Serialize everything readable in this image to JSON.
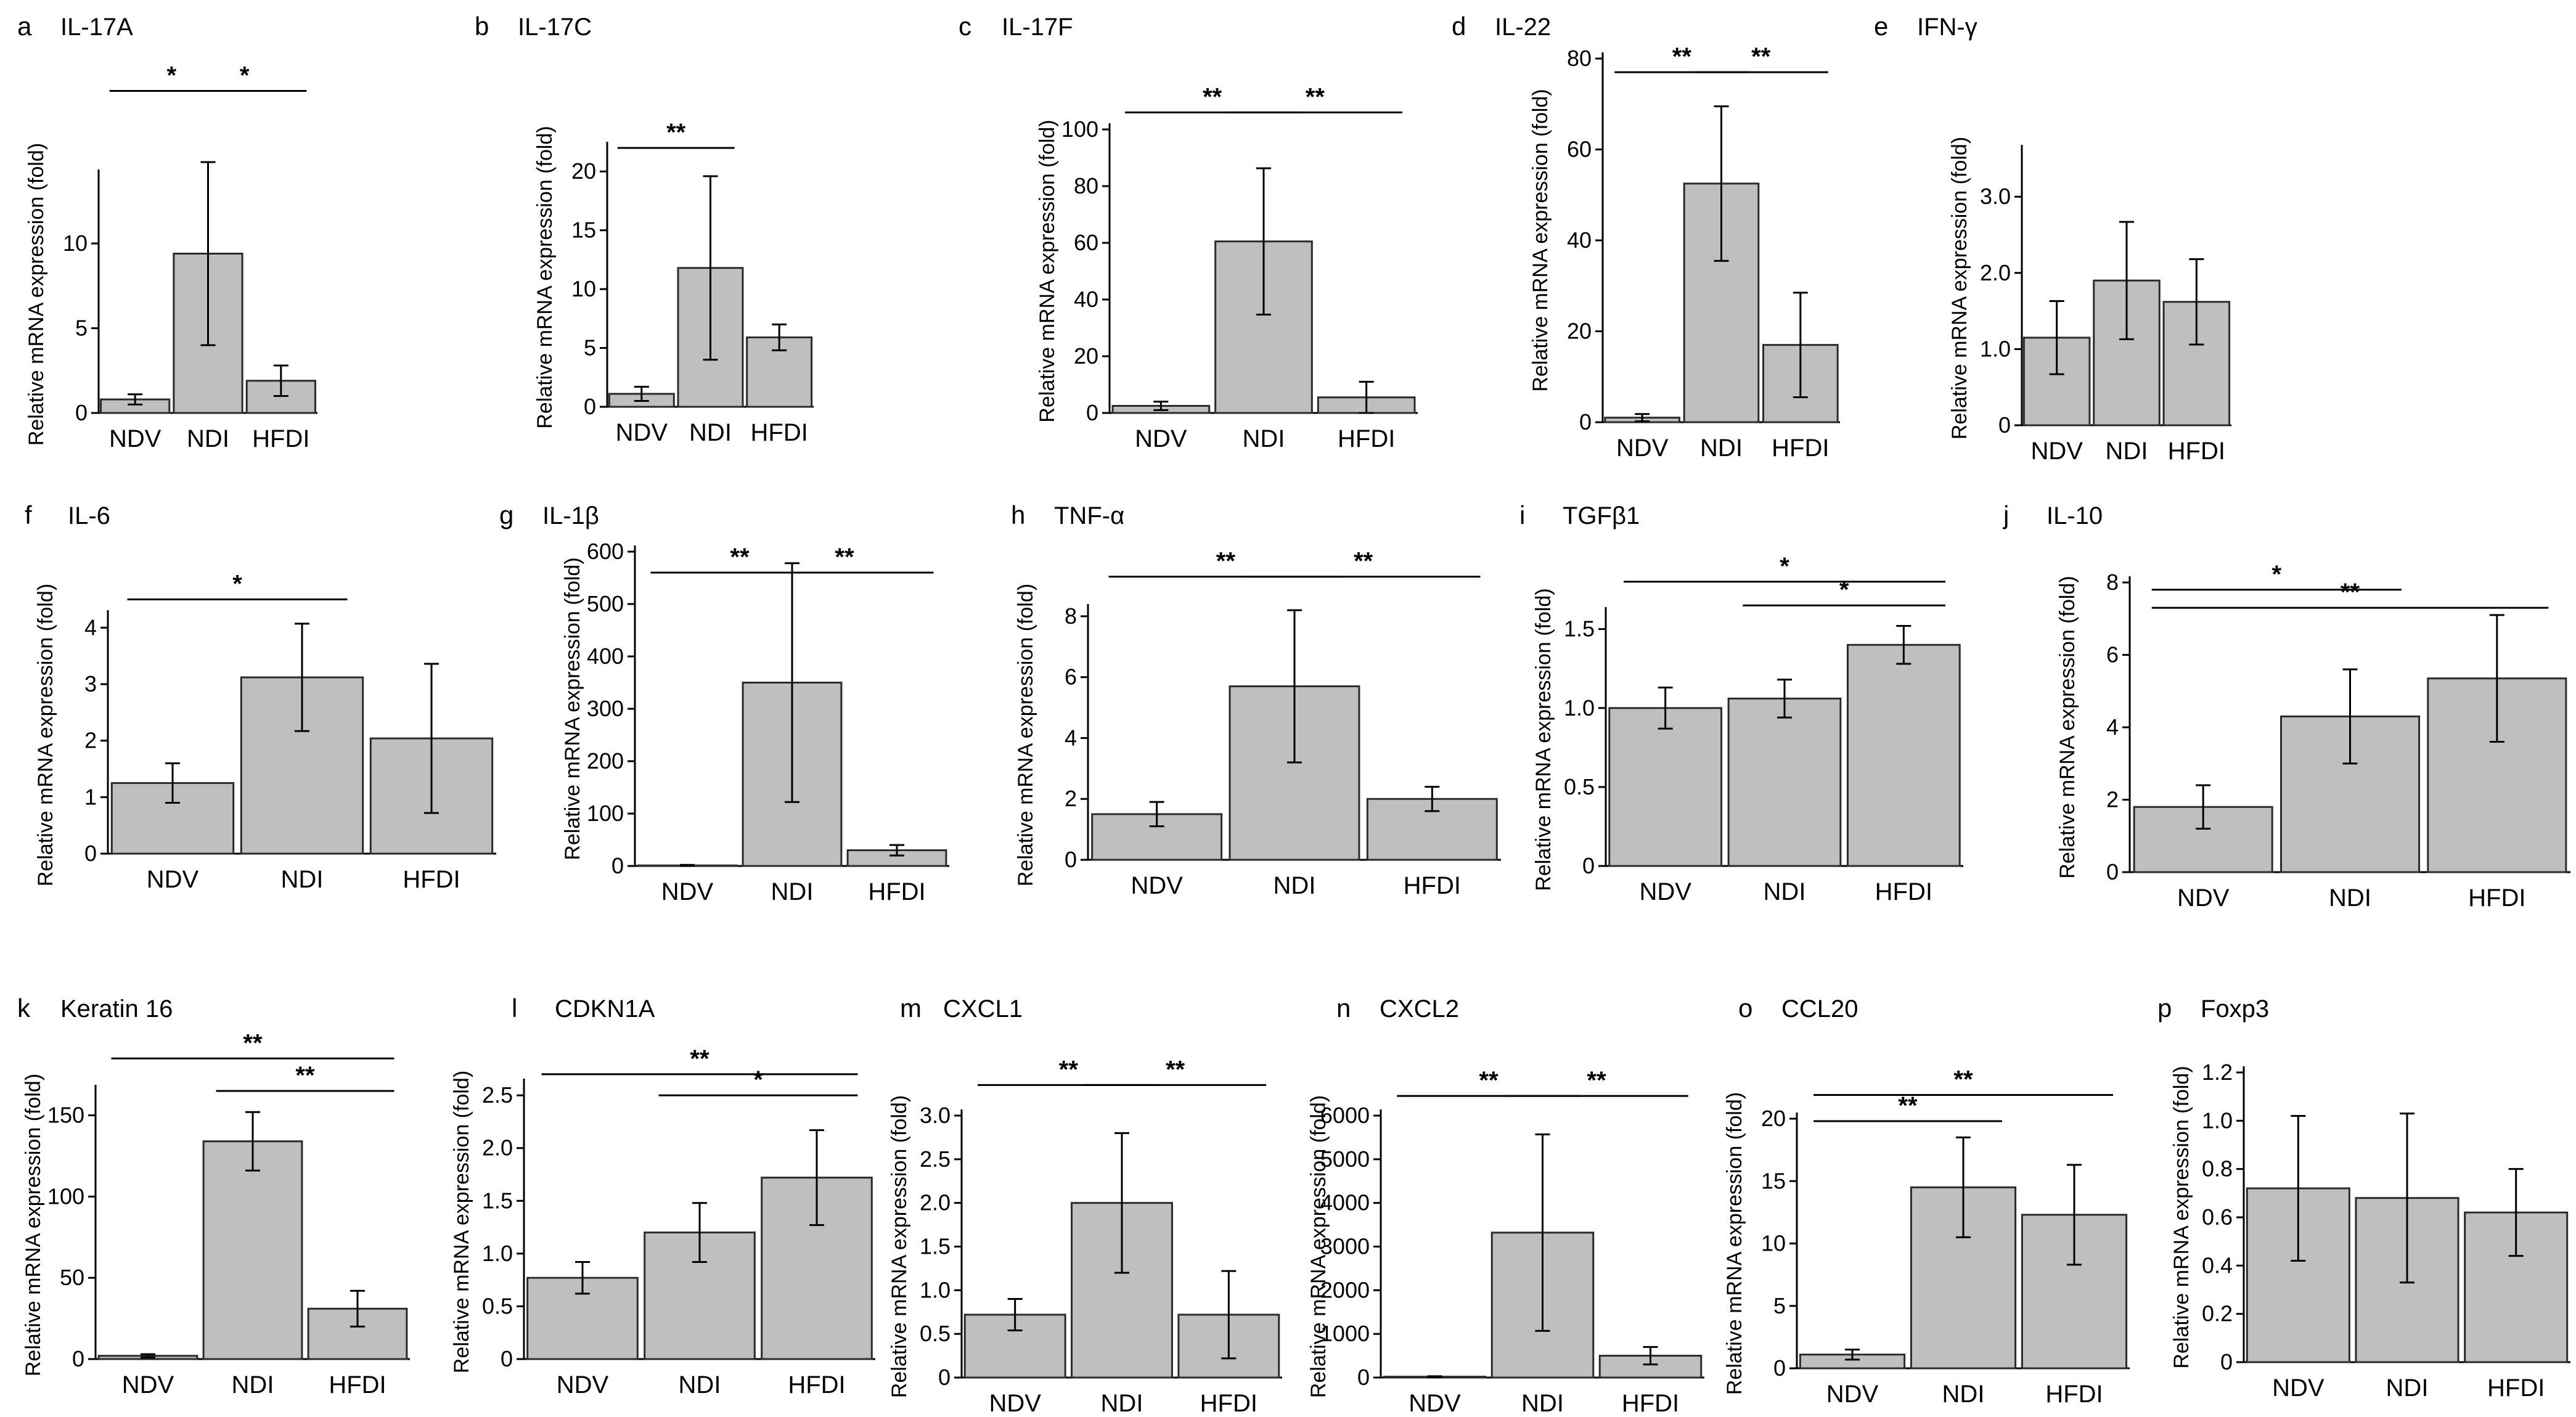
{
  "figure": {
    "ylabel": "Relative mRNA expression (fold)",
    "bar_color": "#bfbfbf",
    "bar_stroke": "#2b2b2b"
  },
  "chart_data": [
    {
      "panel": "a",
      "title": "IL-17A",
      "type": "bar",
      "categories": [
        "NDV",
        "NDI",
        "HFDI"
      ],
      "values": [
        0.8,
        9.4,
        1.9
      ],
      "errors": [
        0.3,
        5.4,
        0.9
      ],
      "yticks": [
        0,
        5,
        10
      ],
      "ylim": [
        0,
        14
      ],
      "significance": [
        {
          "from": 0,
          "to": 1,
          "label": "*",
          "level": 19.0
        },
        {
          "from": 1,
          "to": 2,
          "label": "*",
          "level": 19.0
        }
      ]
    },
    {
      "panel": "b",
      "title": "IL-17C",
      "type": "bar",
      "categories": [
        "NDV",
        "NDI",
        "HFDI"
      ],
      "values": [
        1.1,
        11.8,
        5.9
      ],
      "errors": [
        0.6,
        7.8,
        1.1
      ],
      "yticks": [
        0,
        5,
        10,
        15,
        20
      ],
      "ylim": [
        0,
        22
      ],
      "significance": [
        {
          "from": 0,
          "to": 1,
          "label": "**",
          "level": 22.0
        }
      ]
    },
    {
      "panel": "c",
      "title": "IL-17F",
      "type": "bar",
      "categories": [
        "NDV",
        "NDI",
        "HFDI"
      ],
      "values": [
        2.5,
        60.5,
        5.5
      ],
      "errors": [
        1.5,
        25.8,
        5.5
      ],
      "yticks": [
        0,
        20,
        40,
        60,
        80,
        100
      ],
      "ylim": [
        0,
        100
      ],
      "significance": [
        {
          "from": 0,
          "to": 1,
          "label": "**",
          "level": 106
        },
        {
          "from": 1,
          "to": 2,
          "label": "**",
          "level": 106
        }
      ]
    },
    {
      "panel": "d",
      "title": "IL-22",
      "type": "bar",
      "categories": [
        "NDV",
        "NDI",
        "HFDI"
      ],
      "values": [
        1.0,
        52.5,
        17.0
      ],
      "errors": [
        0.8,
        17.0,
        11.5
      ],
      "yticks": [
        0,
        20,
        40,
        60,
        80
      ],
      "ylim": [
        0,
        80
      ],
      "significance": [
        {
          "from": 0,
          "to": 1,
          "label": "**",
          "level": 77
        },
        {
          "from": 1,
          "to": 2,
          "label": "**",
          "level": 77
        }
      ]
    },
    {
      "panel": "e",
      "title": "IFN-γ",
      "type": "bar",
      "categories": [
        "NDV",
        "NDI",
        "HFDI"
      ],
      "values": [
        1.15,
        1.9,
        1.62
      ],
      "errors": [
        0.48,
        0.77,
        0.56
      ],
      "yticks": [
        0,
        1.0,
        2.0,
        3.0
      ],
      "ytick_labels": [
        "0",
        "1.0",
        "2.0",
        "3.0"
      ],
      "ylim": [
        0,
        3.6
      ],
      "significance": []
    },
    {
      "panel": "f",
      "title": "IL-6",
      "type": "bar",
      "categories": [
        "NDV",
        "NDI",
        "HFDI"
      ],
      "values": [
        1.25,
        3.12,
        2.04
      ],
      "errors": [
        0.35,
        0.95,
        1.32
      ],
      "yticks": [
        0,
        1,
        2,
        3,
        4
      ],
      "ylim": [
        0,
        4.2
      ],
      "significance": [
        {
          "from": 0,
          "to": 1,
          "label": "*",
          "level": 4.5
        }
      ]
    },
    {
      "panel": "g",
      "title": "IL-1β",
      "type": "bar",
      "categories": [
        "NDV",
        "NDI",
        "HFDI"
      ],
      "values": [
        1,
        350,
        30
      ],
      "errors": [
        1,
        228,
        10
      ],
      "yticks": [
        0,
        100,
        200,
        300,
        400,
        500,
        600
      ],
      "ylim": [
        0,
        600
      ],
      "significance": [
        {
          "from": 0,
          "to": 1,
          "label": "**",
          "level": 560
        },
        {
          "from": 1,
          "to": 2,
          "label": "**",
          "level": 560
        }
      ]
    },
    {
      "panel": "h",
      "title": "TNF-α",
      "type": "bar",
      "categories": [
        "NDV",
        "NDI",
        "HFDI"
      ],
      "values": [
        1.5,
        5.7,
        2.0
      ],
      "errors": [
        0.4,
        2.5,
        0.4
      ],
      "yticks": [
        0,
        2,
        4,
        6,
        8
      ],
      "ylim": [
        0,
        8.2
      ],
      "significance": [
        {
          "from": 0,
          "to": 1,
          "label": "**",
          "level": 9.3
        },
        {
          "from": 1,
          "to": 2,
          "label": "**",
          "level": 9.3
        }
      ]
    },
    {
      "panel": "i",
      "title": "TGFβ1",
      "type": "bar",
      "categories": [
        "NDV",
        "NDI",
        "HFDI"
      ],
      "values": [
        1.0,
        1.06,
        1.4
      ],
      "errors": [
        0.13,
        0.12,
        0.12
      ],
      "yticks": [
        0,
        0.5,
        1.0,
        1.5
      ],
      "ytick_labels": [
        "0",
        "0.5",
        "1.0",
        "1.5"
      ],
      "ylim": [
        0,
        1.6
      ],
      "significance": [
        {
          "from": 0,
          "to": 2,
          "label": "*",
          "level": 1.8
        },
        {
          "from": 1,
          "to": 2,
          "label": "*",
          "level": 1.65
        }
      ]
    },
    {
      "panel": "j",
      "title": "IL-10",
      "type": "bar",
      "categories": [
        "NDV",
        "NDI",
        "HFDI"
      ],
      "values": [
        1.8,
        4.3,
        5.35
      ],
      "errors": [
        0.6,
        1.3,
        1.75
      ],
      "yticks": [
        0,
        2,
        4,
        6,
        8
      ],
      "ylim": [
        0,
        8
      ],
      "significance": [
        {
          "from": 0,
          "to": 1,
          "label": "*",
          "level": 7.8
        },
        {
          "from": 0,
          "to": 2,
          "label": "**",
          "level": 7.3
        }
      ]
    },
    {
      "panel": "k",
      "title": "Keratin 16",
      "type": "bar",
      "categories": [
        "NDV",
        "NDI",
        "HFDI"
      ],
      "values": [
        2,
        134,
        31
      ],
      "errors": [
        1,
        18,
        11
      ],
      "yticks": [
        0,
        50,
        100,
        150
      ],
      "ylim": [
        0,
        165
      ],
      "significance": [
        {
          "from": 0,
          "to": 2,
          "label": "**",
          "level": 185
        },
        {
          "from": 1,
          "to": 2,
          "label": "**",
          "level": 165
        }
      ]
    },
    {
      "panel": "l",
      "title": "CDKN1A",
      "type": "bar",
      "categories": [
        "NDV",
        "NDI",
        "HFDI"
      ],
      "values": [
        0.77,
        1.2,
        1.72
      ],
      "errors": [
        0.15,
        0.28,
        0.45
      ],
      "yticks": [
        0,
        0.5,
        1.0,
        1.5,
        2.0,
        2.5
      ],
      "ytick_labels": [
        "0",
        "0.5",
        "1.0",
        "1.5",
        "2.0",
        "2.5"
      ],
      "ylim": [
        0,
        2.6
      ],
      "significance": [
        {
          "from": 0,
          "to": 2,
          "label": "**",
          "level": 2.7
        },
        {
          "from": 1,
          "to": 2,
          "label": "*",
          "level": 2.5
        }
      ]
    },
    {
      "panel": "m",
      "title": "CXCL1",
      "type": "bar",
      "categories": [
        "NDV",
        "NDI",
        "HFDI"
      ],
      "values": [
        0.72,
        2.0,
        0.72
      ],
      "errors": [
        0.18,
        0.8,
        0.5
      ],
      "yticks": [
        0,
        0.5,
        1.0,
        1.5,
        2.0,
        2.5,
        3.0
      ],
      "ytick_labels": [
        "0",
        "0.5",
        "1.0",
        "1.5",
        "2.0",
        "2.5",
        "3.0"
      ],
      "ylim": [
        0,
        3.0
      ],
      "significance": [
        {
          "from": 0,
          "to": 1,
          "label": "**",
          "level": 3.35
        },
        {
          "from": 1,
          "to": 2,
          "label": "**",
          "level": 3.35
        }
      ]
    },
    {
      "panel": "n",
      "title": "CXCL2",
      "type": "bar",
      "categories": [
        "NDV",
        "NDI",
        "HFDI"
      ],
      "values": [
        20,
        3320,
        500
      ],
      "errors": [
        10,
        2250,
        200
      ],
      "yticks": [
        0,
        1000,
        2000,
        3000,
        4000,
        5000,
        6000
      ],
      "ylim": [
        0,
        6000
      ],
      "significance": [
        {
          "from": 0,
          "to": 1,
          "label": "**",
          "level": 6450
        },
        {
          "from": 1,
          "to": 2,
          "label": "**",
          "level": 6450
        }
      ]
    },
    {
      "panel": "o",
      "title": "CCL20",
      "type": "bar",
      "categories": [
        "NDV",
        "NDI",
        "HFDI"
      ],
      "values": [
        1.1,
        14.5,
        12.3
      ],
      "errors": [
        0.4,
        4.0,
        4.0
      ],
      "yticks": [
        0,
        5,
        10,
        15,
        20
      ],
      "ylim": [
        0,
        20
      ],
      "significance": [
        {
          "from": 0,
          "to": 2,
          "label": "**",
          "level": 21.9
        },
        {
          "from": 0,
          "to": 1,
          "label": "**",
          "level": 19.8
        }
      ]
    },
    {
      "panel": "p",
      "title": "Foxp3",
      "type": "bar",
      "categories": [
        "NDV",
        "NDI",
        "HFDI"
      ],
      "values": [
        0.72,
        0.68,
        0.62
      ],
      "errors": [
        0.3,
        0.35,
        0.18
      ],
      "yticks": [
        0,
        0.2,
        0.4,
        0.6,
        0.8,
        1.0,
        1.2
      ],
      "ytick_labels": [
        "0",
        "0.2",
        "0.4",
        "0.6",
        "0.8",
        "1.0",
        "1.2"
      ],
      "ylim": [
        0,
        1.2
      ],
      "significance": []
    }
  ]
}
